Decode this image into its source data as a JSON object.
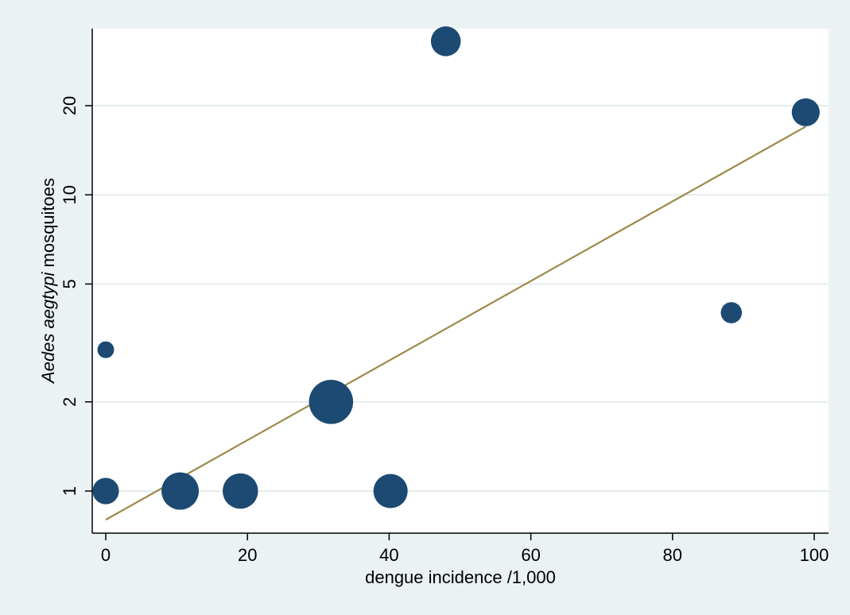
{
  "chart_data": {
    "type": "scatter",
    "title": "",
    "xlabel": "dengue incidence /1,000",
    "ylabel_italic": "Aedes aegtypi",
    "ylabel_rest": " mosquitoes",
    "x_ticks": [
      0,
      20,
      40,
      60,
      80,
      100
    ],
    "y_ticks": [
      1,
      2,
      5,
      10,
      20
    ],
    "y_scale": "log",
    "xlim": [
      -1,
      102
    ],
    "ylim": [
      0.8,
      40
    ],
    "grid": "horizontal",
    "legend": "none",
    "colors": {
      "background": "#eaf2f3",
      "plot_area": "#ffffff",
      "marker": "#1c4a72",
      "fit_line": "#9b8a4a",
      "grid": "#e6ecee"
    },
    "points": [
      {
        "x": 0,
        "y": 1,
        "weight": 2.5
      },
      {
        "x": 0,
        "y": 3,
        "weight": 1
      },
      {
        "x": 10.5,
        "y": 1,
        "weight": 5
      },
      {
        "x": 19,
        "y": 1,
        "weight": 4.5
      },
      {
        "x": 31.8,
        "y": 2,
        "weight": 7
      },
      {
        "x": 40.2,
        "y": 1,
        "weight": 4.2
      },
      {
        "x": 48,
        "y": 33,
        "weight": 3.2
      },
      {
        "x": 88.3,
        "y": 4,
        "weight": 1.6
      },
      {
        "x": 98.8,
        "y": 19,
        "weight": 2.8
      }
    ],
    "fit_line": {
      "x": [
        0,
        98.8
      ],
      "y": [
        0.8,
        17
      ]
    }
  }
}
